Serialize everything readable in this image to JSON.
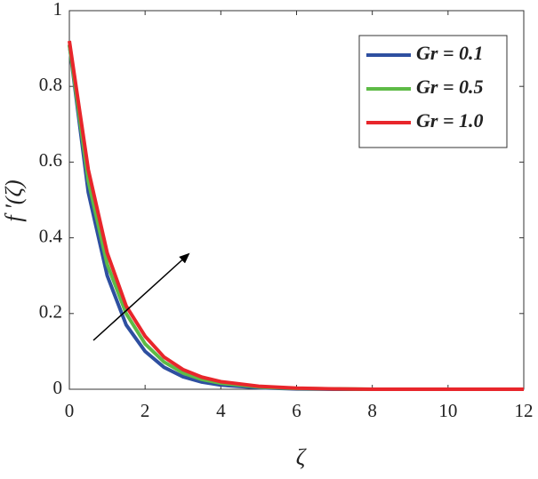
{
  "chart_data": {
    "type": "line",
    "x_label": "ζ",
    "y_label": "f ′(ζ)",
    "x": [
      0,
      0.5,
      1,
      1.5,
      2,
      2.5,
      3,
      3.5,
      4,
      5,
      6,
      7,
      8,
      10,
      12
    ],
    "series": [
      {
        "name": "Gr = 0.1",
        "color": "#2e4fa0",
        "values": [
          0.91,
          0.52,
          0.3,
          0.17,
          0.1,
          0.058,
          0.033,
          0.019,
          0.011,
          0.004,
          0.001,
          0,
          0,
          0,
          0
        ]
      },
      {
        "name": "Gr = 0.5",
        "color": "#5dbb46",
        "values": [
          0.91,
          0.55,
          0.33,
          0.2,
          0.12,
          0.072,
          0.043,
          0.026,
          0.016,
          0.006,
          0.002,
          0.001,
          0,
          0,
          0
        ]
      },
      {
        "name": "Gr = 1.0",
        "color": "#e8262b",
        "values": [
          0.92,
          0.58,
          0.36,
          0.22,
          0.14,
          0.085,
          0.052,
          0.032,
          0.02,
          0.008,
          0.003,
          0.001,
          0,
          0,
          0
        ]
      }
    ],
    "xlim": [
      0,
      12
    ],
    "xticks": [
      0,
      2,
      4,
      6,
      8,
      10,
      12
    ],
    "ylim": [
      0,
      1
    ],
    "yticks": [
      0,
      0.2,
      0.4,
      0.6,
      0.8,
      1
    ],
    "legend": "upper right",
    "grid": false
  }
}
